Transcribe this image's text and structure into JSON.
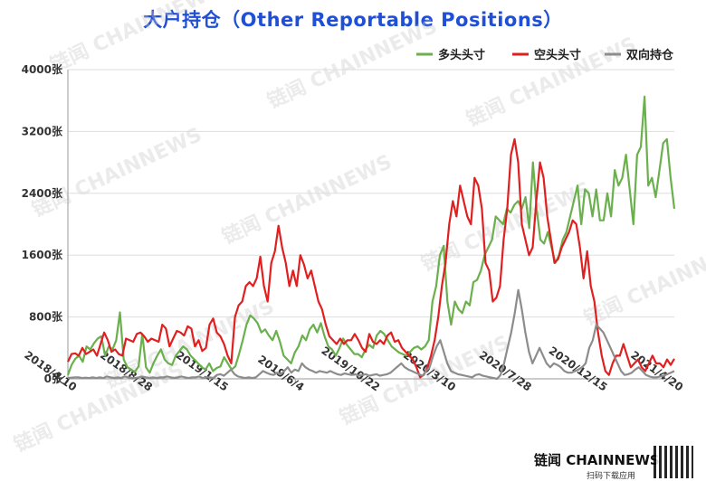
{
  "chart_data": {
    "type": "line",
    "title": "大户持仓（Other Reportable Positions）",
    "ylim": [
      0,
      4000
    ],
    "yticks": [
      "0张",
      "800张",
      "1600张",
      "2400张",
      "3200张",
      "4000张"
    ],
    "ytick_values": [
      0,
      800,
      1600,
      2400,
      3200,
      4000
    ],
    "xticks": [
      "2018/4/10",
      "2018/8/28",
      "2019/1/15",
      "2019/6/4",
      "2019/10/22",
      "2020/3/10",
      "2020/7/28",
      "2020/12/15",
      "2021/4/20"
    ],
    "grid": true,
    "legend_position": "top-right",
    "series": [
      {
        "name": "多头头寸",
        "color": "#6ab04c",
        "values": [
          50,
          180,
          260,
          300,
          220,
          420,
          380,
          460,
          520,
          550,
          300,
          420,
          380,
          500,
          860,
          250,
          150,
          120,
          90,
          160,
          580,
          150,
          80,
          200,
          300,
          380,
          250,
          200,
          180,
          300,
          360,
          420,
          380,
          300,
          250,
          200,
          150,
          120,
          200,
          100,
          140,
          160,
          280,
          200,
          120,
          160,
          320,
          500,
          700,
          820,
          780,
          720,
          600,
          640,
          560,
          500,
          620,
          480,
          300,
          250,
          200,
          340,
          420,
          560,
          500,
          640,
          700,
          600,
          720,
          550,
          420,
          380,
          300,
          400,
          520,
          440,
          380,
          320,
          320,
          280,
          380,
          440,
          400,
          560,
          620,
          580,
          500,
          420,
          380,
          340,
          320,
          300,
          350,
          400,
          420,
          380,
          420,
          500,
          1000,
          1200,
          1600,
          1720,
          1000,
          700,
          1000,
          900,
          850,
          1000,
          950,
          1250,
          1280,
          1400,
          1600,
          1700,
          1800,
          2100,
          2050,
          2000,
          2200,
          2150,
          2250,
          2300,
          2200,
          2350,
          1950,
          2800,
          2200,
          1800,
          1750,
          1900,
          1700,
          1500,
          1600,
          1800,
          1900,
          2100,
          2300,
          2500,
          2000,
          2450,
          2400,
          2100,
          2450,
          2050,
          2050,
          2400,
          2100,
          2700,
          2500,
          2600,
          2900,
          2450,
          2000,
          2900,
          3000,
          3650,
          2500,
          2600,
          2350,
          2700,
          3050,
          3100,
          2600,
          2200
        ]
      },
      {
        "name": "空头头寸",
        "color": "#e02020",
        "values": [
          220,
          320,
          330,
          300,
          400,
          320,
          350,
          380,
          300,
          450,
          600,
          500,
          350,
          380,
          320,
          300,
          520,
          500,
          480,
          580,
          600,
          550,
          480,
          520,
          500,
          480,
          700,
          650,
          420,
          520,
          620,
          600,
          560,
          680,
          650,
          420,
          500,
          360,
          400,
          700,
          780,
          600,
          550,
          450,
          300,
          200,
          800,
          950,
          1000,
          1200,
          1250,
          1200,
          1300,
          1580,
          1200,
          1000,
          1500,
          1650,
          1980,
          1700,
          1500,
          1200,
          1400,
          1200,
          1600,
          1480,
          1300,
          1400,
          1200,
          1000,
          900,
          700,
          550,
          500,
          450,
          520,
          450,
          500,
          500,
          580,
          500,
          400,
          350,
          580,
          480,
          450,
          500,
          450,
          560,
          600,
          480,
          500,
          400,
          350,
          300,
          250,
          150,
          20,
          50,
          150,
          300,
          500,
          800,
          1200,
          1500,
          2000,
          2300,
          2100,
          2500,
          2300,
          2100,
          2000,
          2600,
          2500,
          2200,
          1500,
          1400,
          1000,
          1050,
          1200,
          1800,
          2200,
          2900,
          3100,
          2800,
          2000,
          1800,
          1600,
          1700,
          2300,
          2800,
          2600,
          2100,
          1800,
          1500,
          1550,
          1700,
          1800,
          1900,
          2050,
          2000,
          1700,
          1300,
          1650,
          1200,
          1000,
          600,
          300,
          100,
          50,
          200,
          300,
          300,
          450,
          300,
          150,
          200,
          250,
          150,
          100,
          200,
          300,
          200,
          200,
          150,
          250,
          180,
          260
        ]
      },
      {
        "name": "双向持仓",
        "color": "#8c8c8c",
        "values": [
          10,
          15,
          20,
          20,
          10,
          15,
          10,
          20,
          10,
          20,
          10,
          30,
          20,
          10,
          20,
          10,
          30,
          20,
          10,
          10,
          20,
          30,
          20,
          10,
          20,
          10,
          20,
          20,
          30,
          20,
          10,
          20,
          30,
          20,
          10,
          20,
          20,
          30,
          10,
          20,
          20,
          10,
          50,
          60,
          40,
          80,
          120,
          60,
          30,
          20,
          10,
          20,
          10,
          20,
          60,
          100,
          80,
          60,
          50,
          80,
          60,
          100,
          150,
          80,
          120,
          100,
          200,
          150,
          120,
          100,
          80,
          100,
          90,
          80,
          100,
          80,
          60,
          50,
          70,
          60,
          50,
          60,
          40,
          50,
          60,
          40,
          50,
          60,
          40,
          50,
          60,
          80,
          120,
          160,
          200,
          150,
          120,
          100,
          80,
          60,
          40,
          100,
          150,
          300,
          420,
          500,
          350,
          200,
          100,
          80,
          60,
          50,
          40,
          30,
          20,
          50,
          60,
          40,
          30,
          20,
          10,
          0,
          50,
          200,
          400,
          600,
          850,
          1150,
          900,
          600,
          350,
          200,
          300,
          400,
          300,
          200,
          150,
          200,
          180,
          150,
          100,
          80,
          80,
          100,
          120,
          150,
          200,
          400,
          500,
          700,
          650,
          600,
          500,
          400,
          300,
          200,
          100,
          50,
          60,
          80,
          120,
          150,
          100,
          50,
          30,
          20,
          20,
          30,
          40,
          60,
          80,
          100
        ]
      }
    ]
  },
  "watermark": "链闻 CHAINNEWS",
  "brand": {
    "name": "链闻 CHAINNEWS",
    "subtitle": "扫码下载应用"
  }
}
